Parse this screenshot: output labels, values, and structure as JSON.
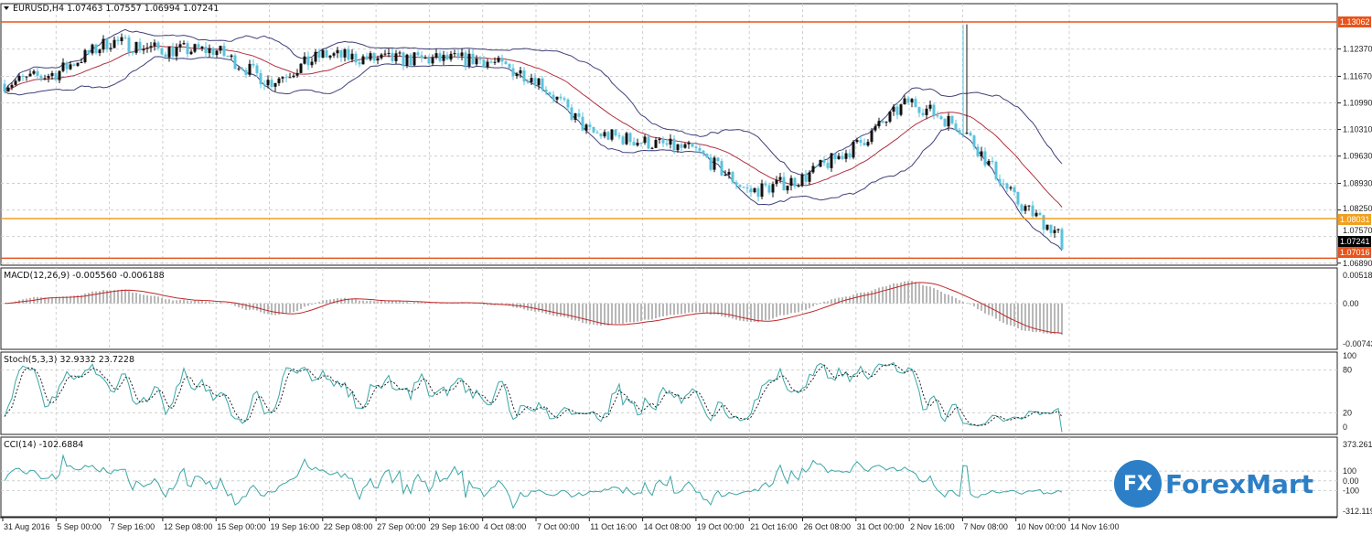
{
  "header": {
    "symbol": "EURUSD,H4",
    "ohlc": "1.07463 1.07557 1.06994 1.07241"
  },
  "indicators": {
    "macd": "MACD(12,26,9) -0.005560 -0.006188",
    "stoch": "Stoch(5,3,3) 32.9332 23.7228",
    "cci": "CCI(14) -102.6884"
  },
  "price_axis": [
    "1.12370",
    "1.11670",
    "1.10990",
    "1.10310",
    "1.09630",
    "1.08930",
    "1.08250",
    "1.07570",
    "1.06890"
  ],
  "macd_axis": [
    "0.005184",
    "0.00",
    "-0.007438"
  ],
  "stoch_axis": [
    "100",
    "80",
    "20",
    "0"
  ],
  "cci_axis": [
    "373.2613",
    "100",
    "0.00",
    "-100",
    "-312.1196"
  ],
  "levels": [
    {
      "value": "1.13062",
      "color": "#e8541c"
    },
    {
      "value": "1.08031",
      "color": "#f0a020"
    },
    {
      "value": "1.07016",
      "color": "#e8541c"
    }
  ],
  "current_price": "1.07241",
  "logo": {
    "badge": "FX",
    "name": "ForexMart"
  },
  "colors": {
    "bear": "#5bc3dc",
    "bull": "#111111",
    "ma": "#b03040",
    "bands": "#40407a",
    "hist": "#b8b8b8",
    "signal": "#c02828",
    "stoch_k": "#3aa6a6",
    "cci": "#3aa6a6"
  },
  "chart_data": {
    "type": "candlestick",
    "title": "EURUSD,H4",
    "x_labels": [
      "31 Aug 2016",
      "5 Sep 00:00",
      "7 Sep 16:00",
      "12 Sep 08:00",
      "15 Sep 00:00",
      "19 Sep 16:00",
      "22 Sep 08:00",
      "27 Sep 00:00",
      "29 Sep 16:00",
      "4 Oct 08:00",
      "7 Oct 00:00",
      "11 Oct 16:00",
      "14 Oct 08:00",
      "19 Oct 00:00",
      "21 Oct 16:00",
      "26 Oct 08:00",
      "31 Oct 00:00",
      "2 Nov 16:00",
      "7 Nov 08:00",
      "10 Nov 00:00",
      "14 Nov 16:00"
    ],
    "approx_close_at_labels": [
      1.1147,
      1.1175,
      1.1257,
      1.1234,
      1.1234,
      1.1152,
      1.1222,
      1.121,
      1.121,
      1.121,
      1.1163,
      1.1023,
      1.1,
      1.0976,
      1.0871,
      1.0906,
      1.0988,
      1.1105,
      1.1035,
      1.0848,
      1.076
    ],
    "last_close": 1.07241,
    "spike_high": 1.13,
    "ylim": [
      1.067,
      1.136
    ],
    "overlays": [
      "Bollinger Bands(20)",
      "MA(20)"
    ]
  }
}
